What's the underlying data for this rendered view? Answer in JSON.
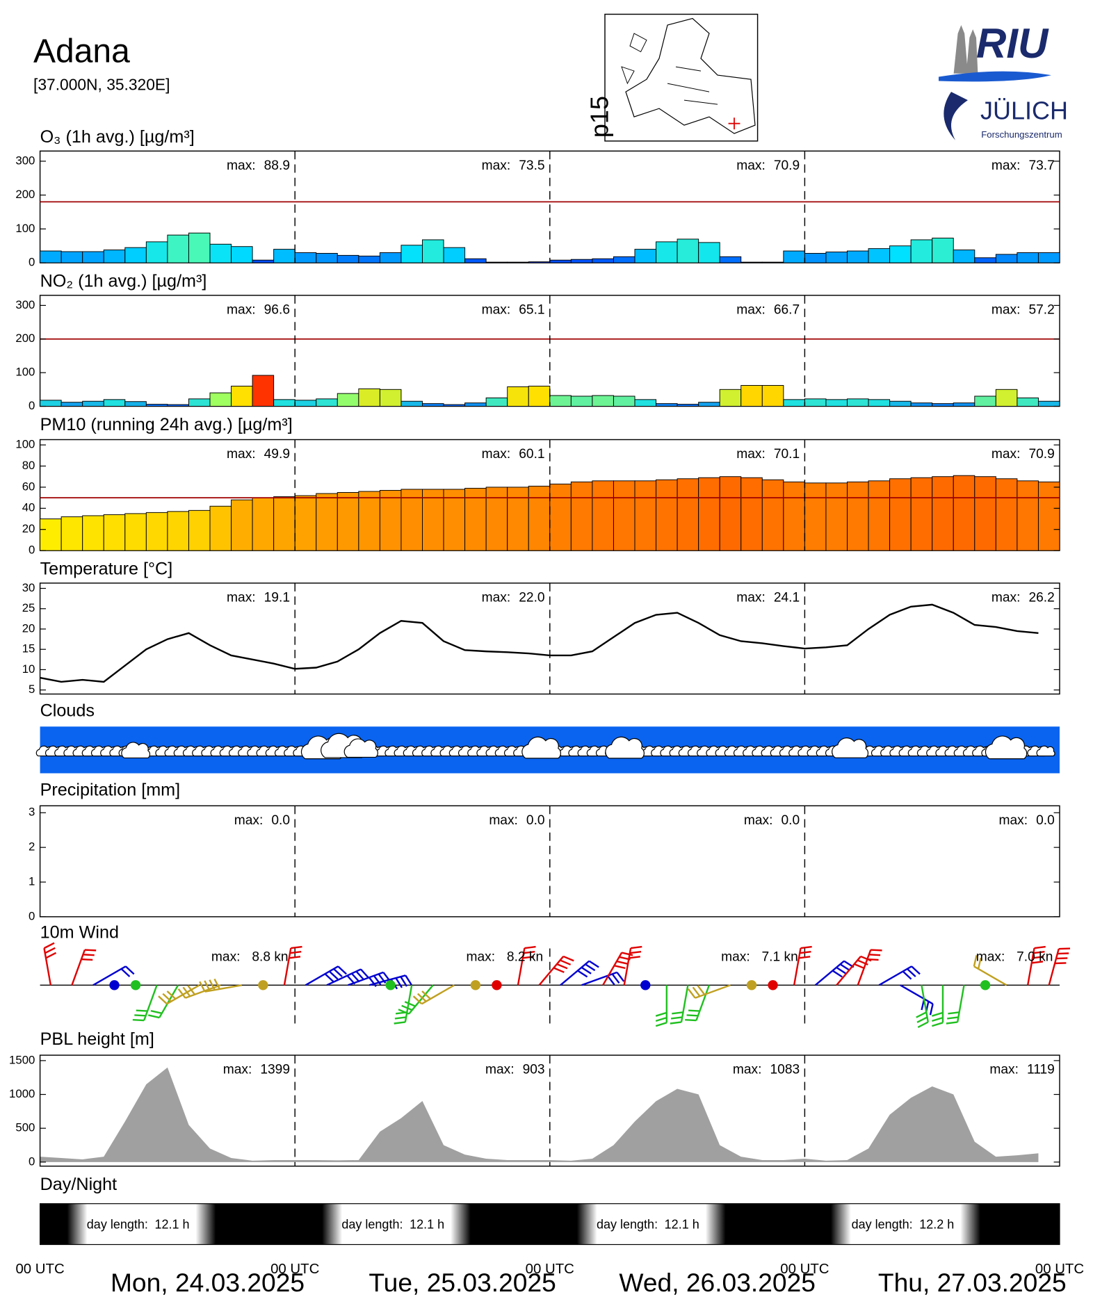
{
  "header": {
    "title": "Adana",
    "coords": "[37.000N, 35.320E]",
    "map_label": "p15"
  },
  "logos": {
    "riu": "RIU",
    "julich": "JÜLICH",
    "fz": "Forschungszentrum"
  },
  "time_axis": {
    "xlim": [
      0,
      96
    ],
    "xticks": [
      {
        "value": 0,
        "label": "00 UTC"
      },
      {
        "value": 24,
        "label": "00 UTC"
      },
      {
        "value": 48,
        "label": "00 UTC"
      },
      {
        "value": 72,
        "label": "00 UTC"
      },
      {
        "value": 96,
        "label": "00 UTC"
      }
    ],
    "day_labels": [
      "Mon, 24.03.2025",
      "Tue, 25.03.2025",
      "Wed, 26.03.2025",
      "Thu, 27.03.2025"
    ],
    "x": [
      0,
      2,
      4,
      6,
      8,
      10,
      12,
      14,
      16,
      18,
      20,
      22,
      24,
      26,
      28,
      30,
      32,
      34,
      36,
      38,
      40,
      42,
      44,
      46,
      48,
      50,
      52,
      54,
      56,
      58,
      60,
      62,
      64,
      66,
      68,
      70,
      72,
      74,
      76,
      78,
      80,
      82,
      84,
      86,
      88,
      90,
      92,
      94
    ]
  },
  "chart_data": [
    {
      "type": "bar",
      "title": "O₃ (1h avg.) [µg/m³]",
      "ylim": [
        0,
        330
      ],
      "yticks": [
        0,
        100,
        200,
        300
      ],
      "threshold": 180,
      "threshold_color": "#a00000",
      "colormap": [
        "#0030ff",
        "#00e0ff",
        "#60ffa0"
      ],
      "color_range": [
        0,
        100
      ],
      "values": [
        35,
        33,
        33,
        38,
        45,
        62,
        82,
        88,
        55,
        48,
        8,
        40,
        30,
        28,
        22,
        20,
        30,
        52,
        68,
        45,
        12,
        2,
        2,
        3,
        8,
        10,
        12,
        18,
        40,
        62,
        70,
        60,
        18,
        2,
        2,
        35,
        28,
        32,
        35,
        42,
        50,
        68,
        73,
        38,
        15,
        25,
        30,
        30
      ],
      "max_prefix": "max:",
      "max_labels": [
        "88.9",
        "73.5",
        "70.9",
        "73.7"
      ]
    },
    {
      "type": "bar",
      "title": "NO₂ (1h avg.) [µg/m³]",
      "ylim": [
        0,
        330
      ],
      "yticks": [
        0,
        100,
        200,
        300
      ],
      "threshold": 200,
      "threshold_color": "#a00000",
      "colormap": [
        "#0040ff",
        "#20e0e0",
        "#a0ff60",
        "#ffe000",
        "#ff8000",
        "#ff0000"
      ],
      "color_range": [
        0,
        100
      ],
      "values": [
        18,
        12,
        15,
        20,
        14,
        6,
        5,
        22,
        40,
        60,
        92,
        20,
        18,
        22,
        38,
        52,
        50,
        15,
        8,
        5,
        10,
        25,
        58,
        60,
        32,
        30,
        32,
        30,
        20,
        8,
        6,
        12,
        50,
        62,
        62,
        20,
        22,
        20,
        22,
        20,
        15,
        10,
        8,
        10,
        30,
        50,
        25,
        15
      ],
      "max_prefix": "max:",
      "max_labels": [
        "96.6",
        "65.1",
        "66.7",
        "57.2"
      ]
    },
    {
      "type": "bar",
      "title": "PM10 (running 24h avg.) [µg/m³]",
      "ylim": [
        0,
        105
      ],
      "yticks": [
        0,
        20,
        40,
        60,
        80,
        100
      ],
      "threshold": 50,
      "threshold_color": "#a00000",
      "colormap": [
        "#ffff00",
        "#ffb000",
        "#ff6a00"
      ],
      "color_range": [
        25,
        70
      ],
      "values": [
        30,
        32,
        33,
        34,
        35,
        36,
        37,
        38,
        42,
        48,
        50,
        51,
        52,
        54,
        55,
        56,
        57,
        58,
        58,
        58,
        59,
        60,
        60,
        61,
        63,
        65,
        66,
        66,
        66,
        67,
        68,
        69,
        70,
        69,
        67,
        65,
        64,
        64,
        65,
        66,
        68,
        69,
        70,
        71,
        70,
        68,
        66,
        65
      ],
      "max_prefix": "max:",
      "max_labels": [
        "49.9",
        "60.1",
        "70.1",
        "70.9"
      ]
    },
    {
      "type": "line",
      "title": "Temperature [°C]",
      "ylim": [
        4,
        31.3
      ],
      "yticks": [
        5,
        10,
        15,
        20,
        25,
        30
      ],
      "color": "#000000",
      "values": [
        8,
        7,
        7.5,
        7,
        11,
        15,
        17.5,
        19,
        16,
        13.5,
        12.5,
        11.5,
        10.2,
        10.5,
        12,
        15,
        19,
        22,
        21.5,
        17,
        14.8,
        14.5,
        14.3,
        14,
        13.5,
        13.5,
        14.5,
        18,
        21.5,
        23.5,
        24,
        21.5,
        18.5,
        17,
        16.5,
        15.8,
        15.2,
        15.5,
        16,
        20,
        23.5,
        25.5,
        26,
        24,
        21,
        20.5,
        19.5,
        19
      ],
      "max_prefix": "max:",
      "max_labels": [
        "19.1",
        "22.0",
        "24.1",
        "26.2"
      ]
    },
    {
      "type": "clouds",
      "title": "Clouds",
      "color": "#0a64f0"
    },
    {
      "type": "bar",
      "title": "Precipitation [mm]",
      "ylim": [
        0,
        3.2
      ],
      "yticks": [
        0,
        1,
        2,
        3
      ],
      "max_prefix": "max:",
      "max_labels": [
        "0.0",
        "0.0",
        "0.0",
        "0.0"
      ]
    },
    {
      "type": "wind",
      "title": "10m Wind",
      "direction_colors": [
        "#e00000",
        "#0000d0",
        "#20c020",
        "#c0a020"
      ],
      "directions": [
        350,
        20,
        60,
        80,
        170,
        200,
        210,
        240,
        250,
        260,
        250,
        10,
        60,
        65,
        70,
        75,
        170,
        190,
        220,
        240,
        250,
        10,
        10,
        40,
        50,
        70,
        30,
        10,
        100,
        180,
        190,
        200,
        250,
        250,
        10,
        10,
        50,
        40,
        20,
        60,
        120,
        170,
        180,
        190,
        170,
        300,
        10,
        15
      ],
      "speeds": [
        6,
        5,
        4,
        0,
        0,
        5,
        4,
        5,
        6,
        7,
        0,
        6,
        8,
        8,
        8,
        7,
        0,
        5,
        6,
        6,
        0,
        0,
        6,
        7,
        7,
        6,
        7,
        6,
        0,
        6,
        6,
        6,
        5,
        0,
        0,
        6,
        7,
        6,
        6,
        5,
        5,
        5,
        5,
        5,
        0,
        4,
        7,
        7
      ],
      "max_prefix": "max:",
      "max_labels": [
        "8.8 kn",
        "8.2 kn",
        "7.1 kn",
        "7.0 kn"
      ]
    },
    {
      "type": "area",
      "title": "PBL height [m]",
      "ylim": [
        -60,
        1580
      ],
      "yticks": [
        0,
        500,
        1000,
        1500
      ],
      "color": "#a0a0a0",
      "values": [
        80,
        60,
        40,
        80,
        600,
        1150,
        1399,
        550,
        200,
        60,
        20,
        30,
        30,
        30,
        25,
        30,
        450,
        650,
        903,
        250,
        110,
        50,
        30,
        30,
        30,
        20,
        50,
        250,
        600,
        900,
        1083,
        1000,
        250,
        80,
        30,
        30,
        50,
        20,
        30,
        200,
        700,
        950,
        1119,
        1000,
        300,
        80,
        100,
        130
      ],
      "max_prefix": "max:",
      "max_labels": [
        "1399",
        "903",
        "1083",
        "1119"
      ]
    },
    {
      "type": "daynight",
      "title": "Day/Night",
      "sunrise": [
        3.5,
        3.5,
        3.5,
        3.4
      ],
      "sunset": [
        15.6,
        15.6,
        15.6,
        15.6
      ],
      "day_length_prefix": "day length:",
      "day_length_labels": [
        "12.1 h",
        "12.1 h",
        "12.1 h",
        "12.2 h"
      ]
    }
  ]
}
